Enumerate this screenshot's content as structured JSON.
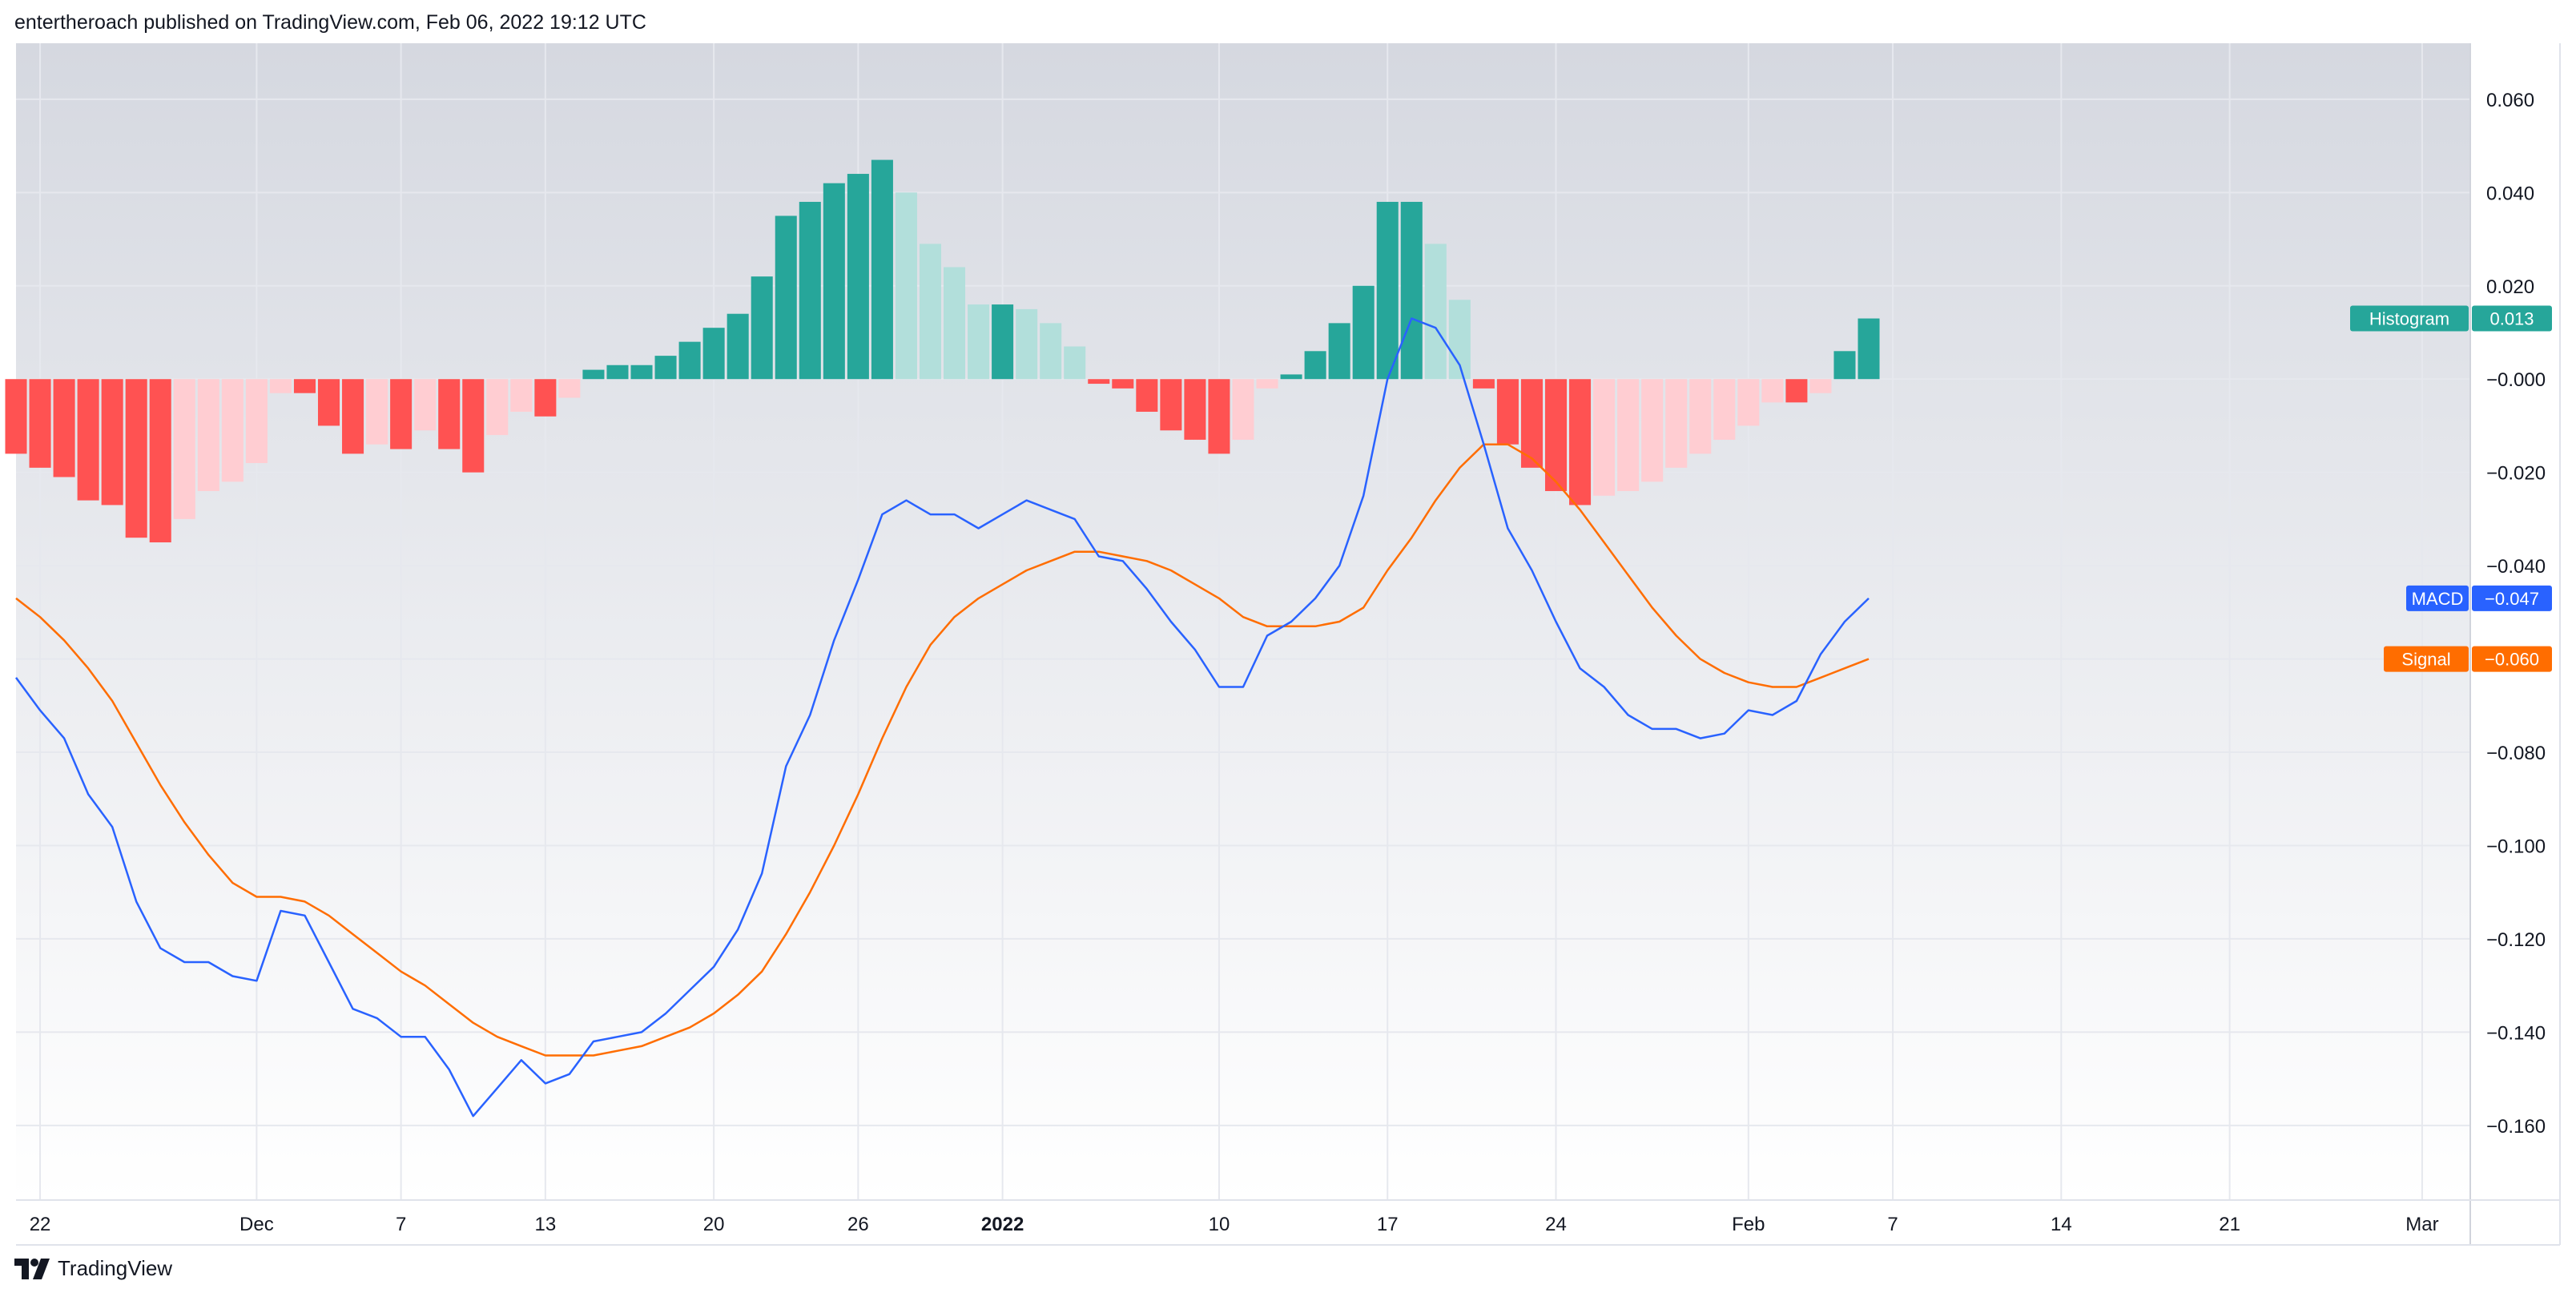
{
  "header": {
    "published_text": "entertheroach published on TradingView.com, Feb 06, 2022 19:12 UTC"
  },
  "footer": {
    "brand": "TradingView",
    "logo_icon": "tradingview-logo-icon"
  },
  "colors": {
    "background_top": "#d5d8e0",
    "background_bottom": "#ffffff",
    "grid": "#e6e8ee",
    "macd_line": "#2962ff",
    "signal_line": "#ff6d00",
    "hist_pos_strong": "#26a69a",
    "hist_pos_weak": "#b2dfdb",
    "hist_neg_strong": "#ff5252",
    "hist_neg_weak": "#ffcdd2",
    "axis_text": "#131722"
  },
  "chart_data": {
    "type": "line",
    "title": "",
    "xlabel": "",
    "ylabel": "",
    "ylim": [
      -0.176,
      0.072
    ],
    "y_ticks": [
      "0.060",
      "0.040",
      "0.020",
      "−0.000",
      "−0.020",
      "−0.040",
      "−0.060",
      "−0.080",
      "−0.100",
      "−0.120",
      "−0.140",
      "−0.160"
    ],
    "y_tick_values": [
      0.06,
      0.04,
      0.02,
      0,
      -0.02,
      -0.04,
      -0.06,
      -0.08,
      -0.1,
      -0.12,
      -0.14,
      -0.16
    ],
    "x_range": [
      "2021-11-21",
      "2022-03-03"
    ],
    "x_ticks": [
      {
        "label": "22",
        "date": "2021-11-22",
        "bold": false
      },
      {
        "label": "Dec",
        "date": "2021-12-01",
        "bold": false
      },
      {
        "label": "7",
        "date": "2021-12-07",
        "bold": false
      },
      {
        "label": "13",
        "date": "2021-12-13",
        "bold": false
      },
      {
        "label": "20",
        "date": "2021-12-20",
        "bold": false
      },
      {
        "label": "26",
        "date": "2021-12-26",
        "bold": false
      },
      {
        "label": "2022",
        "date": "2022-01-01",
        "bold": true
      },
      {
        "label": "10",
        "date": "2022-01-10",
        "bold": false
      },
      {
        "label": "17",
        "date": "2022-01-17",
        "bold": false
      },
      {
        "label": "24",
        "date": "2022-01-24",
        "bold": false
      },
      {
        "label": "Feb",
        "date": "2022-02-01",
        "bold": false
      },
      {
        "label": "7",
        "date": "2022-02-07",
        "bold": false
      },
      {
        "label": "14",
        "date": "2022-02-14",
        "bold": false
      },
      {
        "label": "21",
        "date": "2022-02-21",
        "bold": false
      },
      {
        "label": "Mar",
        "date": "2022-03-01",
        "bold": false
      }
    ],
    "dates": [
      "2021-11-21",
      "2021-11-22",
      "2021-11-23",
      "2021-11-24",
      "2021-11-25",
      "2021-11-26",
      "2021-11-27",
      "2021-11-28",
      "2021-11-29",
      "2021-11-30",
      "2021-12-01",
      "2021-12-02",
      "2021-12-03",
      "2021-12-04",
      "2021-12-05",
      "2021-12-06",
      "2021-12-07",
      "2021-12-08",
      "2021-12-09",
      "2021-12-10",
      "2021-12-11",
      "2021-12-12",
      "2021-12-13",
      "2021-12-14",
      "2021-12-15",
      "2021-12-16",
      "2021-12-17",
      "2021-12-18",
      "2021-12-19",
      "2021-12-20",
      "2021-12-21",
      "2021-12-22",
      "2021-12-23",
      "2021-12-24",
      "2021-12-25",
      "2021-12-26",
      "2021-12-27",
      "2021-12-28",
      "2021-12-29",
      "2021-12-30",
      "2021-12-31",
      "2022-01-01",
      "2022-01-02",
      "2022-01-03",
      "2022-01-04",
      "2022-01-05",
      "2022-01-06",
      "2022-01-07",
      "2022-01-08",
      "2022-01-09",
      "2022-01-10",
      "2022-01-11",
      "2022-01-12",
      "2022-01-13",
      "2022-01-14",
      "2022-01-15",
      "2022-01-16",
      "2022-01-17",
      "2022-01-18",
      "2022-01-19",
      "2022-01-20",
      "2022-01-21",
      "2022-01-22",
      "2022-01-23",
      "2022-01-24",
      "2022-01-25",
      "2022-01-26",
      "2022-01-27",
      "2022-01-28",
      "2022-01-29",
      "2022-01-30",
      "2022-01-31",
      "2022-02-01",
      "2022-02-02",
      "2022-02-03",
      "2022-02-04",
      "2022-02-05",
      "2022-02-06"
    ],
    "series": [
      {
        "name": "MACD",
        "color": "#2962ff",
        "label_value": "−0.047",
        "values": [
          -0.064,
          -0.071,
          -0.077,
          -0.089,
          -0.096,
          -0.112,
          -0.122,
          -0.125,
          -0.125,
          -0.128,
          -0.129,
          -0.114,
          -0.115,
          -0.125,
          -0.135,
          -0.137,
          -0.141,
          -0.141,
          -0.148,
          -0.158,
          -0.152,
          -0.146,
          -0.151,
          -0.149,
          -0.142,
          -0.141,
          -0.14,
          -0.136,
          -0.131,
          -0.126,
          -0.118,
          -0.106,
          -0.083,
          -0.072,
          -0.056,
          -0.043,
          -0.029,
          -0.026,
          -0.029,
          -0.029,
          -0.032,
          -0.029,
          -0.026,
          -0.028,
          -0.03,
          -0.038,
          -0.039,
          -0.045,
          -0.052,
          -0.058,
          -0.066,
          -0.066,
          -0.055,
          -0.052,
          -0.047,
          -0.04,
          -0.025,
          0.0,
          0.013,
          0.011,
          0.003,
          -0.014,
          -0.032,
          -0.041,
          -0.052,
          -0.062,
          -0.066,
          -0.072,
          -0.075,
          -0.075,
          -0.077,
          -0.076,
          -0.071,
          -0.072,
          -0.069,
          -0.059,
          -0.052,
          -0.047
        ]
      },
      {
        "name": "Signal",
        "color": "#ff6d00",
        "label_value": "−0.060",
        "values": [
          -0.047,
          -0.051,
          -0.056,
          -0.062,
          -0.069,
          -0.078,
          -0.087,
          -0.095,
          -0.102,
          -0.108,
          -0.111,
          -0.111,
          -0.112,
          -0.115,
          -0.119,
          -0.123,
          -0.127,
          -0.13,
          -0.134,
          -0.138,
          -0.141,
          -0.143,
          -0.145,
          -0.145,
          -0.145,
          -0.144,
          -0.143,
          -0.141,
          -0.139,
          -0.136,
          -0.132,
          -0.127,
          -0.119,
          -0.11,
          -0.1,
          -0.089,
          -0.077,
          -0.066,
          -0.057,
          -0.051,
          -0.047,
          -0.044,
          -0.041,
          -0.039,
          -0.037,
          -0.037,
          -0.038,
          -0.039,
          -0.041,
          -0.044,
          -0.047,
          -0.051,
          -0.053,
          -0.053,
          -0.053,
          -0.052,
          -0.049,
          -0.041,
          -0.034,
          -0.026,
          -0.019,
          -0.014,
          -0.014,
          -0.017,
          -0.022,
          -0.028,
          -0.035,
          -0.042,
          -0.049,
          -0.055,
          -0.06,
          -0.063,
          -0.065,
          -0.066,
          -0.066,
          -0.064,
          -0.062,
          -0.06
        ]
      },
      {
        "name": "Histogram",
        "type": "bar",
        "color": "#26a69a",
        "label_value": "0.013",
        "values": [
          -0.016,
          -0.019,
          -0.021,
          -0.026,
          -0.027,
          -0.034,
          -0.035,
          -0.03,
          -0.024,
          -0.022,
          -0.018,
          -0.003,
          -0.003,
          -0.01,
          -0.016,
          -0.014,
          -0.015,
          -0.011,
          -0.015,
          -0.02,
          -0.012,
          -0.007,
          -0.008,
          -0.004,
          0.002,
          0.003,
          0.003,
          0.005,
          0.008,
          0.011,
          0.014,
          0.022,
          0.035,
          0.038,
          0.042,
          0.044,
          0.047,
          0.04,
          0.029,
          0.024,
          0.016,
          0.016,
          0.015,
          0.012,
          0.007,
          -0.001,
          -0.002,
          -0.007,
          -0.011,
          -0.013,
          -0.016,
          -0.013,
          -0.002,
          0.001,
          0.006,
          0.012,
          0.02,
          0.038,
          0.038,
          0.029,
          0.017,
          -0.002,
          -0.014,
          -0.019,
          -0.024,
          -0.027,
          -0.025,
          -0.024,
          -0.022,
          -0.019,
          -0.016,
          -0.013,
          -0.01,
          -0.005,
          -0.005,
          -0.003,
          0.006,
          0.013
        ]
      }
    ],
    "grid": true,
    "legend": "right-axis-labels"
  }
}
